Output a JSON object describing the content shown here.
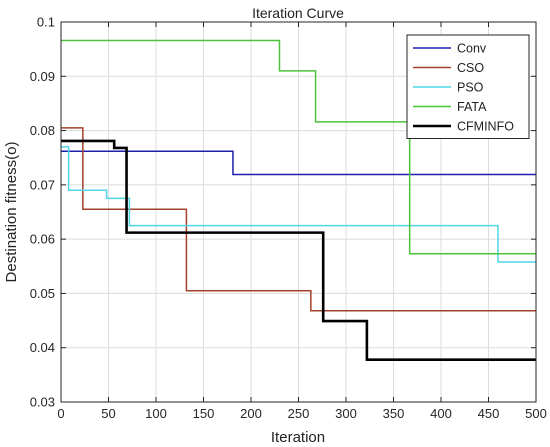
{
  "chart_data": {
    "type": "line",
    "title": "Iteration Curve",
    "xlabel": "Iteration",
    "ylabel": "Destination fitness(o)",
    "xlim": [
      0,
      500
    ],
    "ylim": [
      0.03,
      0.1
    ],
    "xticks": [
      0,
      50,
      100,
      150,
      200,
      250,
      300,
      350,
      400,
      450,
      500
    ],
    "yticks": [
      0.03,
      0.04,
      0.05,
      0.06,
      0.07,
      0.08,
      0.09,
      0.1
    ],
    "ytick_labels": [
      "0.03",
      "0.04",
      "0.05",
      "0.06",
      "0.07",
      "0.08",
      "0.09",
      "0.1"
    ],
    "grid": true,
    "legend_position": "top-right",
    "step": true,
    "series": [
      {
        "name": "Conv",
        "color": "#1f1fb0",
        "points": [
          [
            0,
            0.0762
          ],
          [
            181,
            0.0762
          ],
          [
            181,
            0.0719
          ],
          [
            500,
            0.0719
          ]
        ]
      },
      {
        "name": "CSO",
        "color": "#a5402a",
        "points": [
          [
            0,
            0.0805
          ],
          [
            18,
            0.0805
          ],
          [
            18,
            0.0805
          ],
          [
            23,
            0.0805
          ],
          [
            23,
            0.0655
          ],
          [
            132,
            0.0655
          ],
          [
            132,
            0.0505
          ],
          [
            263,
            0.0505
          ],
          [
            263,
            0.0468
          ],
          [
            500,
            0.0468
          ]
        ]
      },
      {
        "name": "PSO",
        "color": "#4fd6e6",
        "points": [
          [
            0,
            0.077
          ],
          [
            8,
            0.077
          ],
          [
            8,
            0.069
          ],
          [
            48,
            0.069
          ],
          [
            48,
            0.0675
          ],
          [
            72,
            0.0675
          ],
          [
            72,
            0.0625
          ],
          [
            460,
            0.0625
          ],
          [
            460,
            0.0558
          ],
          [
            500,
            0.0558
          ]
        ]
      },
      {
        "name": "FATA",
        "color": "#4cc23a",
        "points": [
          [
            0,
            0.0966
          ],
          [
            230,
            0.0966
          ],
          [
            230,
            0.091
          ],
          [
            268,
            0.091
          ],
          [
            268,
            0.0816
          ],
          [
            367,
            0.0816
          ],
          [
            367,
            0.0573
          ],
          [
            500,
            0.0573
          ]
        ]
      },
      {
        "name": "CFMINFO",
        "color": "#000000",
        "points": [
          [
            0,
            0.0781
          ],
          [
            56,
            0.0781
          ],
          [
            56,
            0.0768
          ],
          [
            69,
            0.0768
          ],
          [
            69,
            0.0612
          ],
          [
            276,
            0.0612
          ],
          [
            276,
            0.0449
          ],
          [
            322,
            0.0449
          ],
          [
            322,
            0.0378
          ],
          [
            500,
            0.0378
          ]
        ]
      }
    ]
  }
}
